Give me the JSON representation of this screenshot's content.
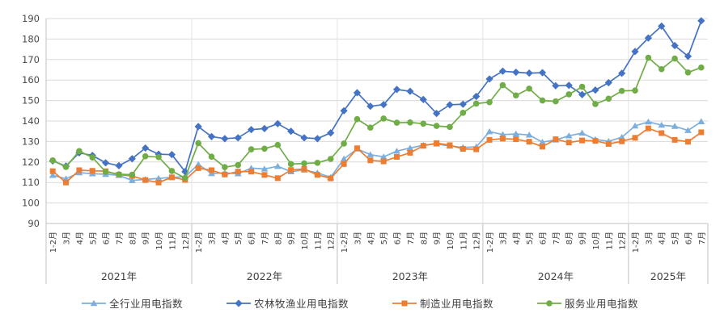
{
  "chart_data": {
    "type": "line",
    "title": "",
    "grid": true,
    "legend_position": "bottom",
    "y_axis": {
      "min": 90,
      "max": 190,
      "step": 10,
      "tick_labels": [
        "190",
        "180",
        "170",
        "160",
        "150",
        "140",
        "130",
        "120",
        "110",
        "100",
        "90"
      ]
    },
    "x_axis": {
      "month_labels": [
        "1-2月",
        "3月",
        "4月",
        "5月",
        "6月",
        "7月",
        "8月",
        "9月",
        "10月",
        "11月",
        "12月"
      ],
      "year_groups": [
        {
          "label": "2021年",
          "months": 11
        },
        {
          "label": "2022年",
          "months": 11
        },
        {
          "label": "2023年",
          "months": 11
        },
        {
          "label": "2024年",
          "months": 11
        },
        {
          "label": "2025年",
          "months": 6
        }
      ]
    },
    "categories": [
      "1-2月",
      "3月",
      "4月",
      "5月",
      "6月",
      "7月",
      "8月",
      "9月",
      "10月",
      "11月",
      "12月",
      "1-2月",
      "3月",
      "4月",
      "5月",
      "6月",
      "7月",
      "8月",
      "9月",
      "10月",
      "11月",
      "12月",
      "1-2月",
      "3月",
      "4月",
      "5月",
      "6月",
      "7月",
      "8月",
      "9月",
      "10月",
      "11月",
      "12月",
      "1-2月",
      "3月",
      "4月",
      "5月",
      "6月",
      "7月",
      "8月",
      "9月",
      "10月",
      "11月",
      "12月",
      "1-2月",
      "3月",
      "4月",
      "5月",
      "6月",
      "7月"
    ],
    "series": [
      {
        "key": "all-industry-index",
        "name": "全行业用电指数",
        "color": "#7CAFDD",
        "marker": "triangle",
        "values": [
          113.5,
          111.8,
          114.8,
          114.3,
          114.0,
          113.5,
          111.0,
          111.5,
          112.0,
          112.5,
          112.8,
          118.8,
          114.4,
          114.7,
          114.3,
          117.0,
          116.6,
          117.9,
          115.3,
          116.1,
          114.7,
          112.5,
          121.5,
          126.4,
          123.6,
          122.5,
          125.3,
          126.8,
          128.2,
          128.8,
          127.8,
          127.1,
          127.4,
          134.8,
          133.4,
          133.7,
          133.2,
          129.7,
          130.8,
          132.8,
          134.1,
          131.0,
          130.1,
          132.1,
          137.6,
          139.6,
          138.0,
          137.4,
          135.4,
          139.7
        ]
      },
      {
        "key": "agriculture-index",
        "name": "农林牧渔业用电指数",
        "color": "#4472C4",
        "marker": "diamond",
        "values": [
          120.5,
          118.0,
          124.5,
          123.2,
          119.6,
          118.2,
          121.6,
          126.8,
          123.8,
          123.6,
          115.3,
          137.3,
          132.4,
          131.4,
          131.8,
          135.8,
          136.3,
          138.7,
          135.0,
          131.8,
          131.4,
          134.2,
          145.0,
          153.8,
          147.2,
          148.0,
          155.4,
          154.5,
          150.5,
          143.7,
          147.9,
          148.2,
          152.0,
          160.5,
          164.3,
          163.8,
          163.4,
          163.6,
          157.2,
          157.4,
          152.9,
          155.1,
          158.7,
          163.3,
          173.9,
          180.5,
          186.3,
          176.8,
          171.6,
          188.9
        ]
      },
      {
        "key": "manufacturing-index",
        "name": "制造业用电指数",
        "color": "#ED7D31",
        "marker": "square",
        "values": [
          115.5,
          110.0,
          116.0,
          115.7,
          115.5,
          113.8,
          113.2,
          111.2,
          110.0,
          112.5,
          111.3,
          117.0,
          116.0,
          113.9,
          115.3,
          115.3,
          113.7,
          112.1,
          116.1,
          116.6,
          113.7,
          112.0,
          119.0,
          126.7,
          120.8,
          120.3,
          122.5,
          124.5,
          127.9,
          129.2,
          128.2,
          126.4,
          126.2,
          130.8,
          131.4,
          131.1,
          129.9,
          127.5,
          131.1,
          129.5,
          130.5,
          130.3,
          128.8,
          130.1,
          131.8,
          136.4,
          134.1,
          130.8,
          129.9,
          134.5
        ]
      },
      {
        "key": "services-index",
        "name": "服务业用电指数",
        "color": "#70AD47",
        "marker": "circle",
        "values": [
          120.8,
          117.6,
          125.3,
          122.2,
          115.2,
          114.0,
          113.8,
          122.8,
          122.4,
          115.6,
          112.2,
          129.2,
          122.6,
          117.5,
          118.5,
          126.2,
          126.5,
          128.3,
          119.0,
          119.3,
          119.6,
          121.5,
          129.0,
          140.9,
          136.8,
          141.2,
          139.2,
          139.3,
          138.7,
          137.6,
          137.1,
          144.0,
          148.5,
          149.2,
          157.5,
          152.5,
          155.8,
          150.0,
          149.6,
          153.0,
          156.7,
          148.3,
          150.9,
          154.7,
          154.9,
          170.9,
          165.3,
          170.5,
          163.7,
          166.1
        ]
      }
    ],
    "colors": {
      "gridline": "#DADADA",
      "axis_line": "#C0C0C0",
      "tick_text": "#4a4a4a",
      "label_text": "#404040"
    }
  }
}
